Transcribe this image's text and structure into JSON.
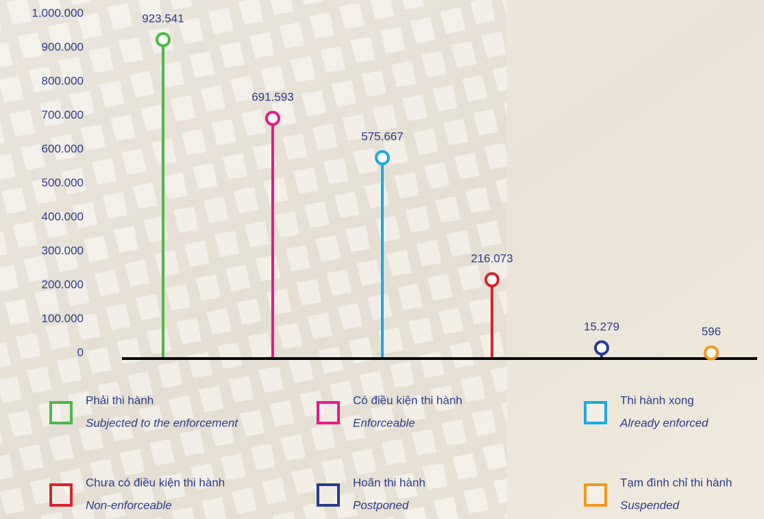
{
  "chart_data": {
    "type": "lollipop",
    "ylim": [
      0,
      1000000
    ],
    "yticks": [
      0,
      {
        "value": 100000,
        "label": "100.000"
      },
      {
        "value": 200000,
        "label": "200.000"
      },
      {
        "value": 300000,
        "label": "300.000"
      },
      {
        "value": 400000,
        "label": "400.000"
      },
      {
        "value": 500000,
        "label": "500.000"
      },
      {
        "value": 600000,
        "label": "600.000"
      },
      {
        "value": 700000,
        "label": "700.000"
      },
      {
        "value": 800000,
        "label": "800.000"
      },
      {
        "value": 900000,
        "label": "900.000"
      },
      {
        "value": 1000000,
        "label": "1.000.000"
      }
    ],
    "series": [
      {
        "name": "Phải thi hành",
        "name_en": "Subjected to the enforcement",
        "color": "#4cb848",
        "values": [
          923541
        ],
        "value_labels": [
          "923.541"
        ]
      },
      {
        "name": "Có điều kiện thi hành",
        "name_en": "Enforceable",
        "color": "#e6198a",
        "values": [
          691593
        ],
        "value_labels": [
          "691.593"
        ]
      },
      {
        "name": "Thi hành xong",
        "name_en": "Already enforced",
        "color": "#1aa9e2",
        "values": [
          575667
        ],
        "value_labels": [
          "575.667"
        ]
      },
      {
        "name": "Chưa có điều kiện thi hành",
        "name_en": "Non-enforceable",
        "color": "#d7252c",
        "values": [
          216073
        ],
        "value_labels": [
          "216.073"
        ]
      },
      {
        "name": "Hoãn thi hành",
        "name_en": "Postponed",
        "color": "#253d8f",
        "values": [
          15279
        ],
        "value_labels": [
          "15.279"
        ]
      },
      {
        "name": "Tạm đình chỉ thi hành",
        "name_en": "Suspended",
        "color": "#f3981f",
        "values": [
          596
        ]
      }
    ]
  }
}
